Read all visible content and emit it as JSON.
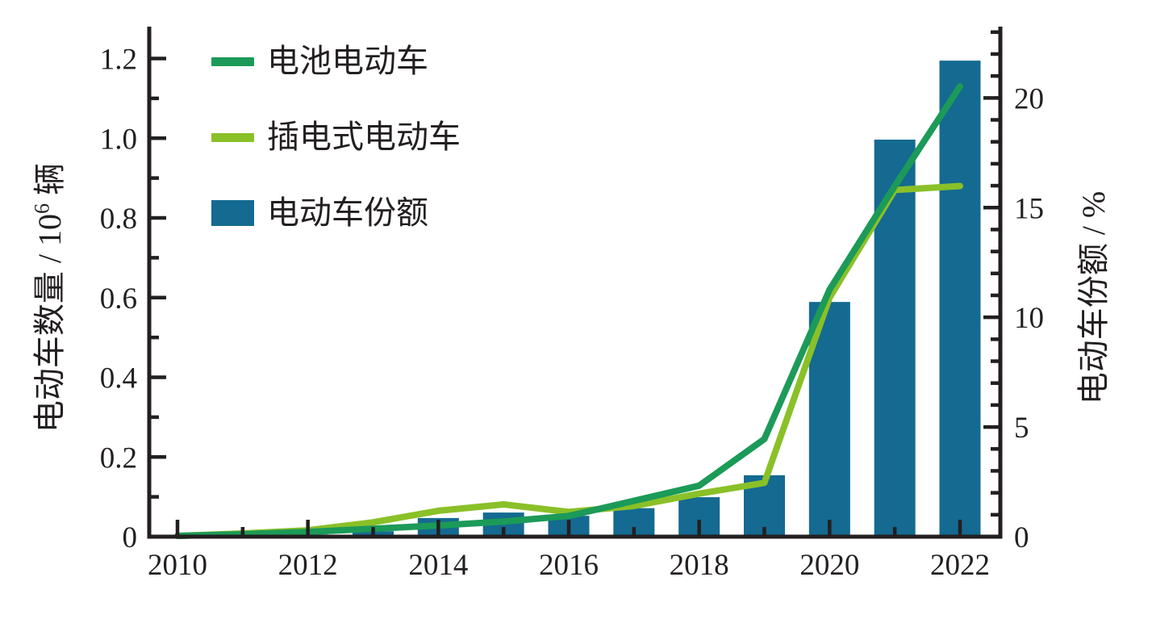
{
  "chart_data": {
    "type": "combo",
    "categories": [
      2010,
      2011,
      2012,
      2013,
      2014,
      2015,
      2016,
      2017,
      2018,
      2019,
      2020,
      2021,
      2022
    ],
    "series": [
      {
        "name": "电池电动车",
        "type": "line",
        "axis": "left",
        "color": "#1c9a58",
        "values": [
          0.002,
          0.006,
          0.012,
          0.02,
          0.028,
          0.038,
          0.052,
          0.09,
          0.128,
          0.245,
          0.62,
          0.88,
          1.13
        ]
      },
      {
        "name": "插电式电动车",
        "type": "line",
        "axis": "left",
        "color": "#8ac028",
        "values": [
          0.002,
          0.008,
          0.016,
          0.036,
          0.065,
          0.081,
          0.062,
          0.077,
          0.108,
          0.135,
          0.6,
          0.87,
          0.88
        ]
      },
      {
        "name": "电动车份额",
        "type": "bar",
        "axis": "right",
        "color": "#146a91",
        "values": [
          0.02,
          0.05,
          0.1,
          0.25,
          0.85,
          1.1,
          0.95,
          1.3,
          1.8,
          2.8,
          10.7,
          18.1,
          21.7
        ]
      }
    ],
    "axis_left": {
      "title_prefix": "电动车数量 / 10",
      "title_sup": "6",
      "title_suffix": " 辆",
      "tick_labels": [
        "0",
        "0.2",
        "0.4",
        "0.6",
        "0.8",
        "1.0",
        "1.2"
      ],
      "ticks": [
        0,
        0.2,
        0.4,
        0.6,
        0.8,
        1.0,
        1.2
      ],
      "minor_step": 0.1,
      "lim": [
        0,
        1.28
      ]
    },
    "axis_right": {
      "title": "电动车份额 / %",
      "tick_labels": [
        "0",
        "5",
        "10",
        "15",
        "20"
      ],
      "ticks": [
        0,
        5,
        10,
        15,
        20
      ],
      "minor_step": 1,
      "minor_max": 23,
      "lim": [
        0,
        23.25
      ]
    },
    "axis_x": {
      "major_ticks": [
        2010,
        2012,
        2014,
        2016,
        2018,
        2020,
        2022
      ],
      "minor_ticks": [
        2011,
        2013,
        2015,
        2017,
        2019,
        2021
      ],
      "lim": [
        2010,
        2022
      ]
    },
    "frame_color": "#231f20",
    "background": "#ffffff",
    "legend_position": "upper-left",
    "grid": false
  }
}
